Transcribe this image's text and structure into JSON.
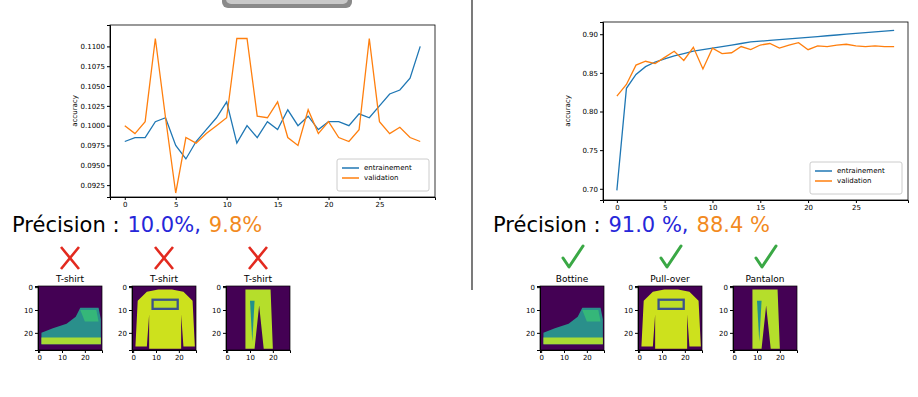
{
  "chart_data": [
    {
      "type": "line",
      "ylabel": "accuracy",
      "legend": "lower right",
      "x": [
        0,
        1,
        2,
        3,
        4,
        5,
        6,
        7,
        8,
        9,
        10,
        11,
        12,
        13,
        14,
        15,
        16,
        17,
        18,
        19,
        20,
        21,
        22,
        23,
        24,
        25,
        26,
        27,
        28,
        29
      ],
      "xlim": [
        -1.45,
        30.45
      ],
      "xticks": [
        0,
        5,
        10,
        15,
        20,
        25
      ],
      "ylim": [
        0.091,
        0.1127
      ],
      "yticks": [
        {
          "value": 0.0925,
          "label": "0.0925"
        },
        {
          "value": 0.095,
          "label": "0.0950"
        },
        {
          "value": 0.0975,
          "label": "0.0975"
        },
        {
          "value": 0.1,
          "label": "0.1000"
        },
        {
          "value": 0.1025,
          "label": "0.1025"
        },
        {
          "value": 0.105,
          "label": "0.1050"
        },
        {
          "value": 0.1075,
          "label": "0.1075"
        },
        {
          "value": 0.11,
          "label": "0.1100"
        }
      ],
      "series": [
        {
          "name": "entrainement",
          "color": "#1f77b4",
          "values": [
            0.098,
            0.0985,
            0.0985,
            0.1005,
            0.101,
            0.0975,
            0.0958,
            0.098,
            0.0995,
            0.101,
            0.103,
            0.0978,
            0.1,
            0.0985,
            0.1005,
            0.0995,
            0.102,
            0.1,
            0.1012,
            0.0995,
            0.1005,
            0.1005,
            0.1,
            0.1015,
            0.101,
            0.1025,
            0.104,
            0.1045,
            0.106,
            0.11
          ]
        },
        {
          "name": "validation",
          "color": "#ff7f0e",
          "values": [
            0.1,
            0.099,
            0.1005,
            0.111,
            0.101,
            0.0915,
            0.0985,
            0.0978,
            0.099,
            0.1,
            0.101,
            0.111,
            0.111,
            0.1012,
            0.101,
            0.103,
            0.0985,
            0.0975,
            0.102,
            0.099,
            0.1005,
            0.0985,
            0.098,
            0.0995,
            0.111,
            0.1005,
            0.099,
            0.0998,
            0.0985,
            0.098
          ]
        }
      ],
      "annotations": [
        {
          "text": "Précision :",
          "color": "#000000"
        },
        {
          "text": "10.0%,",
          "color": "#2626d9"
        },
        {
          "text": "9.8%",
          "color": "#f28a1e"
        }
      ]
    },
    {
      "type": "line",
      "ylabel": "accuracy",
      "legend": "lower right",
      "x": [
        0,
        1,
        2,
        3,
        4,
        5,
        6,
        7,
        8,
        9,
        10,
        11,
        12,
        13,
        14,
        15,
        16,
        17,
        18,
        19,
        20,
        21,
        22,
        23,
        24,
        25,
        26,
        27,
        28,
        29
      ],
      "xlim": [
        -1.45,
        30.45
      ],
      "xticks": [
        0,
        5,
        10,
        15,
        20,
        25
      ],
      "ylim": [
        0.6855,
        0.9158
      ],
      "yticks": [
        {
          "value": 0.7,
          "label": "0.70"
        },
        0.75,
        {
          "value": 0.8,
          "label": "0.80"
        },
        0.85,
        {
          "value": 0.9,
          "label": "0.90"
        }
      ],
      "series": [
        {
          "name": "entrainement",
          "color": "#1f77b4",
          "values": [
            0.698,
            0.83,
            0.848,
            0.858,
            0.864,
            0.868,
            0.872,
            0.875,
            0.878,
            0.88,
            0.882,
            0.884,
            0.886,
            0.888,
            0.89,
            0.891,
            0.892,
            0.893,
            0.894,
            0.895,
            0.896,
            0.897,
            0.898,
            0.899,
            0.9,
            0.901,
            0.902,
            0.903,
            0.904,
            0.905
          ]
        },
        {
          "name": "validation",
          "color": "#ff7f0e",
          "values": [
            0.82,
            0.835,
            0.86,
            0.865,
            0.862,
            0.87,
            0.878,
            0.866,
            0.883,
            0.855,
            0.882,
            0.875,
            0.876,
            0.884,
            0.88,
            0.886,
            0.888,
            0.882,
            0.886,
            0.889,
            0.88,
            0.885,
            0.884,
            0.886,
            0.887,
            0.885,
            0.884,
            0.885,
            0.884,
            0.884
          ]
        }
      ],
      "annotations": [
        {
          "text": "Précision :",
          "color": "#000000"
        },
        {
          "text": "91.0 %,",
          "color": "#2626d9"
        },
        {
          "text": "88.4 %",
          "color": "#f28a1e"
        }
      ]
    },
    {
      "type": "image",
      "title": "T-shirt",
      "marker": "cross",
      "xlim": [
        -0.5,
        27.5
      ],
      "ylim": [
        27.5,
        -0.5
      ],
      "xticks": [
        0,
        10,
        20
      ],
      "yticks": [
        0,
        10,
        20
      ]
    },
    {
      "type": "image",
      "title": "T-shirt",
      "marker": "cross",
      "xlim": [
        -0.5,
        27.5
      ],
      "ylim": [
        27.5,
        -0.5
      ],
      "xticks": [
        0,
        10,
        20
      ],
      "yticks": [
        0,
        10,
        20
      ]
    },
    {
      "type": "image",
      "title": "T-shirt",
      "marker": "cross",
      "xlim": [
        -0.5,
        27.5
      ],
      "ylim": [
        27.5,
        -0.5
      ],
      "xticks": [
        0,
        10,
        20
      ],
      "yticks": [
        0,
        10,
        20
      ]
    },
    {
      "type": "image",
      "title": "Bottine",
      "marker": "check",
      "xlim": [
        -0.5,
        27.5
      ],
      "ylim": [
        27.5,
        -0.5
      ],
      "xticks": [
        0,
        10,
        20
      ],
      "yticks": [
        0,
        10,
        20
      ]
    },
    {
      "type": "image",
      "title": "Pull-over",
      "marker": "check",
      "xlim": [
        -0.5,
        27.5
      ],
      "ylim": [
        27.5,
        -0.5
      ],
      "xticks": [
        0,
        10,
        20
      ],
      "yticks": [
        0,
        10,
        20
      ]
    },
    {
      "type": "image",
      "title": "Pantalon",
      "marker": "check",
      "xlim": [
        -0.5,
        27.5
      ],
      "ylim": [
        27.5,
        -0.5
      ],
      "xticks": [
        0,
        10,
        20
      ],
      "yticks": [
        0,
        10,
        20
      ]
    }
  ]
}
